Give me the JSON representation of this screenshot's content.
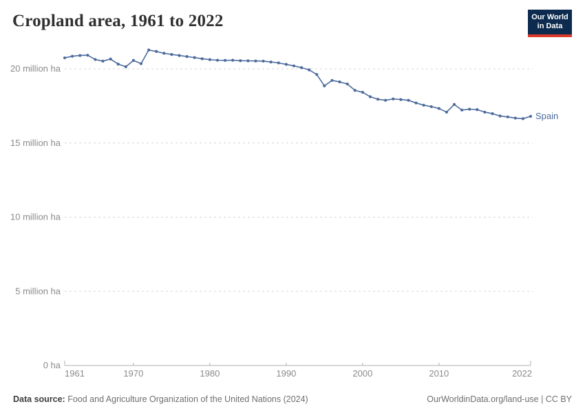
{
  "header": {
    "title": "Cropland area, 1961 to 2022",
    "logo": {
      "line1": "Our World",
      "line2": "in Data",
      "bg_color": "#0d2b4e",
      "accent_color": "#dc3a2b"
    }
  },
  "footer": {
    "source_label": "Data source:",
    "source_text": " Food and Agriculture Organization of the United Nations (2024)",
    "credit": "OurWorldinData.org/land-use | CC BY"
  },
  "chart_data": {
    "type": "line",
    "title": "Cropland area, 1961 to 2022",
    "unit": "million ha",
    "line_color": "#4c6a9c",
    "grid_color": "#d5d5d5",
    "axis_color": "#b0b0b0",
    "tick_label_color": "#8a8a8a",
    "grid": true,
    "legend_position": "end-of-line",
    "ylim": [
      0,
      21.6
    ],
    "y_ticks": [
      {
        "value": 0,
        "label": "0 ha"
      },
      {
        "value": 5,
        "label": "5 million ha"
      },
      {
        "value": 10,
        "label": "10 million ha"
      },
      {
        "value": 15,
        "label": "15 million ha"
      },
      {
        "value": 20,
        "label": "20 million ha"
      }
    ],
    "x_ticks": [
      1961,
      1970,
      1980,
      1990,
      2000,
      2010,
      2022
    ],
    "x": [
      1961,
      1962,
      1963,
      1964,
      1965,
      1966,
      1967,
      1968,
      1969,
      1970,
      1971,
      1972,
      1973,
      1974,
      1975,
      1976,
      1977,
      1978,
      1979,
      1980,
      1981,
      1982,
      1983,
      1984,
      1985,
      1986,
      1987,
      1988,
      1989,
      1990,
      1991,
      1992,
      1993,
      1994,
      1995,
      1996,
      1997,
      1998,
      1999,
      2000,
      2001,
      2002,
      2003,
      2004,
      2005,
      2006,
      2007,
      2008,
      2009,
      2010,
      2011,
      2012,
      2013,
      2014,
      2015,
      2016,
      2017,
      2018,
      2019,
      2020,
      2021,
      2022
    ],
    "series": [
      {
        "name": "Spain",
        "values": [
          20.74,
          20.85,
          20.9,
          20.92,
          20.63,
          20.52,
          20.66,
          20.32,
          20.14,
          20.57,
          20.35,
          21.27,
          21.17,
          21.05,
          20.97,
          20.9,
          20.83,
          20.76,
          20.68,
          20.62,
          20.58,
          20.57,
          20.58,
          20.55,
          20.54,
          20.53,
          20.52,
          20.46,
          20.4,
          20.3,
          20.2,
          20.08,
          19.93,
          19.62,
          18.85,
          19.22,
          19.12,
          18.98,
          18.55,
          18.42,
          18.12,
          17.95,
          17.88,
          17.97,
          17.93,
          17.88,
          17.7,
          17.55,
          17.45,
          17.33,
          17.08,
          17.6,
          17.22,
          17.28,
          17.25,
          17.08,
          16.98,
          16.82,
          16.76,
          16.68,
          16.64,
          16.8
        ]
      }
    ]
  }
}
